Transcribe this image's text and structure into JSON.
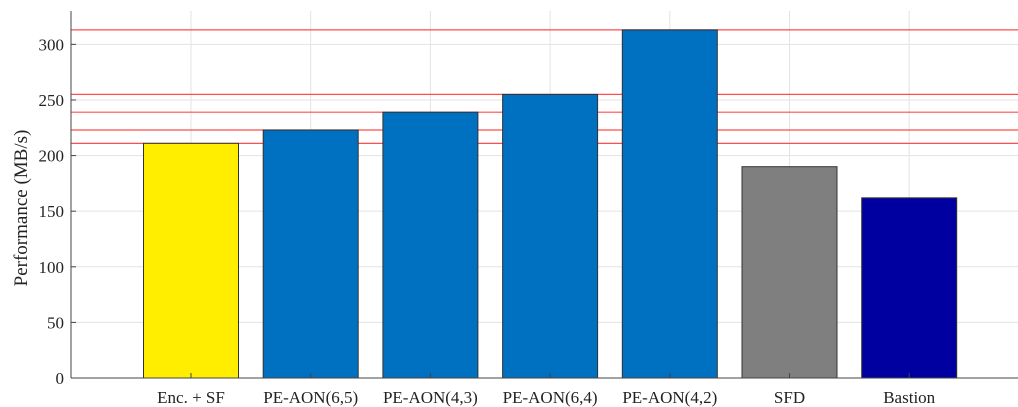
{
  "chart_data": {
    "type": "bar",
    "title": "",
    "xlabel": "",
    "ylabel": "Performance (MB/s)",
    "categories": [
      "Enc. + SF",
      "PE-AON(6,5)",
      "PE-AON(4,3)",
      "PE-AON(6,4)",
      "PE-AON(4,2)",
      "SFD",
      "Bastion"
    ],
    "values": [
      211,
      223,
      239,
      255,
      313,
      190,
      162
    ],
    "bar_colors": [
      "#ffee00",
      "#0070c0",
      "#0070c0",
      "#0070c0",
      "#0070c0",
      "#7f7f7f",
      "#0000a0"
    ],
    "ylim": [
      0,
      330
    ],
    "yticks": [
      0,
      50,
      100,
      150,
      200,
      250,
      300
    ],
    "grid": true,
    "reference_lines": [
      211,
      223,
      239,
      255,
      313
    ],
    "reference_line_color": "#ff4d4d"
  }
}
